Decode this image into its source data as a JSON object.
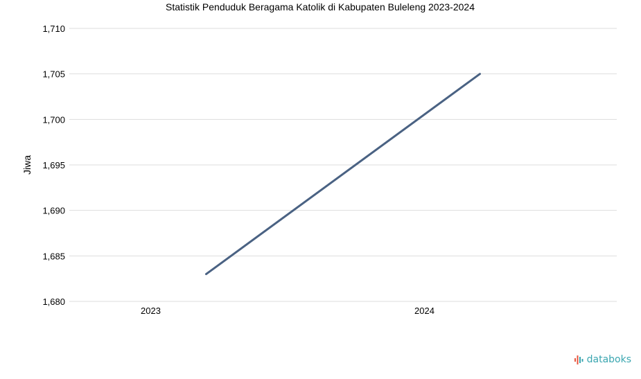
{
  "chart_data": {
    "type": "line",
    "title": "Statistik Penduduk Beragama Katolik di Kabupaten Buleleng 2023-2024",
    "xlabel": "",
    "ylabel": "Jiwa",
    "categories": [
      "2023",
      "2024"
    ],
    "series": [
      {
        "values": [
          1683,
          1705
        ]
      }
    ],
    "ylim": [
      1680,
      1710
    ],
    "yticks": [
      1680,
      1685,
      1690,
      1695,
      1700,
      1705,
      1710
    ],
    "ytick_labels": [
      "1,680",
      "1,685",
      "1,690",
      "1,695",
      "1,700",
      "1,705",
      "1,710"
    ],
    "grid": true,
    "legend": "none"
  },
  "colors": {
    "series": "#4a6283",
    "grid": "#dddddd",
    "brand": "#3aa6b0",
    "brand_accent": "#e8553e"
  },
  "branding": {
    "logo_text": "databoks",
    "icon": "bar-wave-icon"
  }
}
